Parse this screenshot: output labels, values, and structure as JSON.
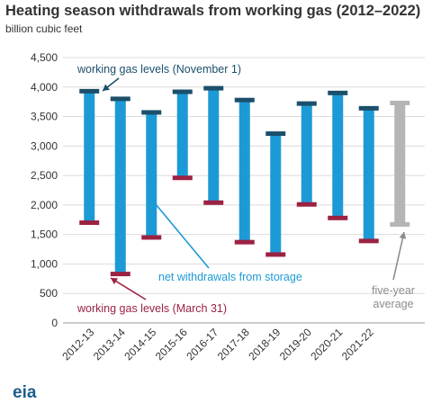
{
  "chart_data": {
    "type": "bar",
    "title": "Heating season withdrawals from working gas (2012–2022)",
    "ylabel": "billion cubic feet",
    "ylim": [
      0,
      4500
    ],
    "yticks": [
      "0",
      "500",
      "1,000",
      "1,500",
      "2,000",
      "2,500",
      "3,000",
      "3,500",
      "4,000",
      "4,500"
    ],
    "ytick_values": [
      0,
      500,
      1000,
      1500,
      2000,
      2500,
      3000,
      3500,
      4000,
      4500
    ],
    "categories": [
      "2012-13",
      "2013-14",
      "2014-15",
      "2015-16",
      "2016-17",
      "2017-18",
      "2018-19",
      "2019-20",
      "2020-21",
      "2021-22",
      ""
    ],
    "series": [
      {
        "name": "working gas levels (November 1)",
        "values": [
          3930,
          3800,
          3570,
          3920,
          3980,
          3780,
          3210,
          3720,
          3900,
          3640,
          3730
        ]
      },
      {
        "name": "working gas levels (March 31)",
        "values": [
          1700,
          830,
          1450,
          2460,
          2040,
          1370,
          1160,
          2010,
          1780,
          1390,
          1670
        ]
      }
    ],
    "highlight_category": "five-year average",
    "annotations": [
      {
        "text": "working gas levels (November 1)"
      },
      {
        "text": "net withdrawals from storage"
      },
      {
        "text": "working gas levels (March 31)"
      },
      {
        "text": "five-year"
      },
      {
        "text": "average"
      }
    ],
    "colors": {
      "range": "#1c9ad6",
      "average_range": "#b5b5b5",
      "november": "#1b4f6b",
      "march": "#9b2242",
      "grid": "#dcdcdc",
      "annotation_blue": "#1b4f6b",
      "annotation_cyan": "#1c9ad6",
      "annotation_red": "#9b2242",
      "annotation_gray": "#8c8c8c"
    },
    "legend": "annotations"
  },
  "logo": {
    "text": "eia",
    "name": "eia-logo"
  }
}
